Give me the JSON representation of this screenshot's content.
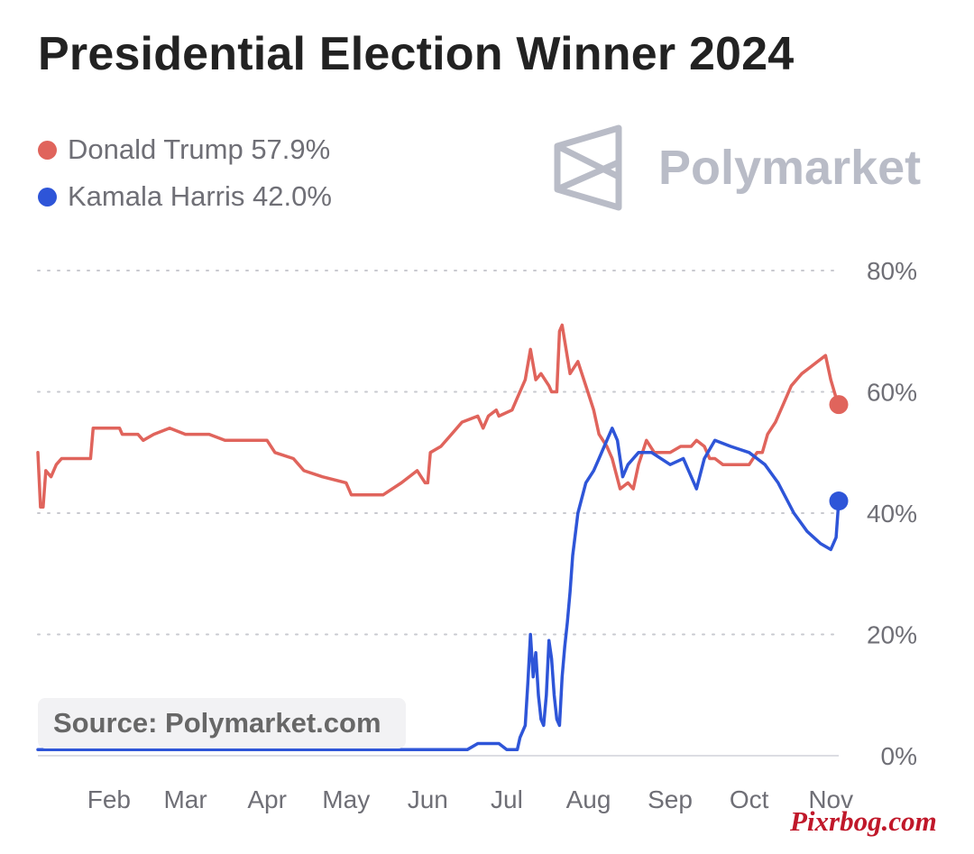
{
  "chart_data": {
    "type": "line",
    "title": "Presidential Election Winner 2024",
    "x_ticks": [
      "Feb",
      "Mar",
      "Apr",
      "May",
      "Jun",
      "Jul",
      "Aug",
      "Sep",
      "Oct",
      "Nov"
    ],
    "y_ticks": [
      "80%",
      "60%",
      "40%",
      "20%",
      "0%"
    ],
    "ylim": [
      0,
      80
    ],
    "grid": "horizontal dotted",
    "legend_position": "top-left",
    "series": [
      {
        "name": "Donald Trump",
        "legend_label": "Donald Trump 57.9%",
        "color": "#e0645c",
        "points": [
          [
            "2024-01-05",
            50
          ],
          [
            "2024-01-06",
            41
          ],
          [
            "2024-01-07",
            41
          ],
          [
            "2024-01-08",
            47
          ],
          [
            "2024-01-10",
            46
          ],
          [
            "2024-01-12",
            48
          ],
          [
            "2024-01-14",
            49
          ],
          [
            "2024-01-18",
            49
          ],
          [
            "2024-01-25",
            49
          ],
          [
            "2024-01-26",
            54
          ],
          [
            "2024-02-01",
            54
          ],
          [
            "2024-02-05",
            54
          ],
          [
            "2024-02-06",
            53
          ],
          [
            "2024-02-12",
            53
          ],
          [
            "2024-02-14",
            52
          ],
          [
            "2024-02-18",
            53
          ],
          [
            "2024-02-24",
            54
          ],
          [
            "2024-03-01",
            53
          ],
          [
            "2024-03-10",
            53
          ],
          [
            "2024-03-16",
            52
          ],
          [
            "2024-03-24",
            52
          ],
          [
            "2024-04-01",
            52
          ],
          [
            "2024-04-04",
            50
          ],
          [
            "2024-04-11",
            49
          ],
          [
            "2024-04-15",
            47
          ],
          [
            "2024-04-22",
            46
          ],
          [
            "2024-05-01",
            45
          ],
          [
            "2024-05-03",
            43
          ],
          [
            "2024-05-15",
            43
          ],
          [
            "2024-05-22",
            45
          ],
          [
            "2024-05-28",
            47
          ],
          [
            "2024-05-31",
            45
          ],
          [
            "2024-06-01",
            45
          ],
          [
            "2024-06-02",
            50
          ],
          [
            "2024-06-06",
            51
          ],
          [
            "2024-06-10",
            53
          ],
          [
            "2024-06-14",
            55
          ],
          [
            "2024-06-20",
            56
          ],
          [
            "2024-06-22",
            54
          ],
          [
            "2024-06-24",
            56
          ],
          [
            "2024-06-27",
            57
          ],
          [
            "2024-06-28",
            56
          ],
          [
            "2024-07-03",
            57
          ],
          [
            "2024-07-05",
            59
          ],
          [
            "2024-07-08",
            62
          ],
          [
            "2024-07-10",
            67
          ],
          [
            "2024-07-12",
            62
          ],
          [
            "2024-07-14",
            63
          ],
          [
            "2024-07-17",
            61
          ],
          [
            "2024-07-18",
            60
          ],
          [
            "2024-07-20",
            60
          ],
          [
            "2024-07-21",
            70
          ],
          [
            "2024-07-22",
            71
          ],
          [
            "2024-07-25",
            63
          ],
          [
            "2024-07-28",
            65
          ],
          [
            "2024-07-31",
            61
          ],
          [
            "2024-08-03",
            57
          ],
          [
            "2024-08-05",
            53
          ],
          [
            "2024-08-08",
            51
          ],
          [
            "2024-08-10",
            49
          ],
          [
            "2024-08-13",
            44
          ],
          [
            "2024-08-16",
            45
          ],
          [
            "2024-08-18",
            44
          ],
          [
            "2024-08-20",
            48
          ],
          [
            "2024-08-23",
            52
          ],
          [
            "2024-08-26",
            50
          ],
          [
            "2024-09-01",
            50
          ],
          [
            "2024-09-05",
            51
          ],
          [
            "2024-09-09",
            51
          ],
          [
            "2024-09-11",
            52
          ],
          [
            "2024-09-14",
            51
          ],
          [
            "2024-09-16",
            49
          ],
          [
            "2024-09-18",
            49
          ],
          [
            "2024-09-21",
            48
          ],
          [
            "2024-09-25",
            48
          ],
          [
            "2024-10-01",
            48
          ],
          [
            "2024-10-04",
            50
          ],
          [
            "2024-10-06",
            50
          ],
          [
            "2024-10-08",
            53
          ],
          [
            "2024-10-11",
            55
          ],
          [
            "2024-10-14",
            58
          ],
          [
            "2024-10-17",
            61
          ],
          [
            "2024-10-21",
            63
          ],
          [
            "2024-10-24",
            64
          ],
          [
            "2024-10-27",
            65
          ],
          [
            "2024-10-30",
            66
          ],
          [
            "2024-11-01",
            62
          ],
          [
            "2024-11-03",
            59
          ],
          [
            "2024-11-04",
            57.9
          ]
        ]
      },
      {
        "name": "Kamala Harris",
        "legend_label": "Kamala Harris 42.0%",
        "color": "#2e55d8",
        "points": [
          [
            "2024-01-05",
            1
          ],
          [
            "2024-03-01",
            1
          ],
          [
            "2024-05-01",
            1
          ],
          [
            "2024-06-01",
            1
          ],
          [
            "2024-06-16",
            1
          ],
          [
            "2024-06-20",
            2
          ],
          [
            "2024-06-28",
            2
          ],
          [
            "2024-07-01",
            1
          ],
          [
            "2024-07-05",
            1
          ],
          [
            "2024-07-06",
            3
          ],
          [
            "2024-07-08",
            5
          ],
          [
            "2024-07-09",
            12
          ],
          [
            "2024-07-10",
            20
          ],
          [
            "2024-07-11",
            13
          ],
          [
            "2024-07-12",
            17
          ],
          [
            "2024-07-13",
            10
          ],
          [
            "2024-07-14",
            6
          ],
          [
            "2024-07-15",
            5
          ],
          [
            "2024-07-16",
            10
          ],
          [
            "2024-07-17",
            19
          ],
          [
            "2024-07-18",
            16
          ],
          [
            "2024-07-19",
            10
          ],
          [
            "2024-07-20",
            6
          ],
          [
            "2024-07-21",
            5
          ],
          [
            "2024-07-22",
            13
          ],
          [
            "2024-07-23",
            18
          ],
          [
            "2024-07-24",
            22
          ],
          [
            "2024-07-25",
            27
          ],
          [
            "2024-07-26",
            33
          ],
          [
            "2024-07-28",
            40
          ],
          [
            "2024-07-31",
            45
          ],
          [
            "2024-08-03",
            47
          ],
          [
            "2024-08-05",
            49
          ],
          [
            "2024-08-07",
            51
          ],
          [
            "2024-08-10",
            54
          ],
          [
            "2024-08-12",
            52
          ],
          [
            "2024-08-14",
            46
          ],
          [
            "2024-08-16",
            48
          ],
          [
            "2024-08-20",
            50
          ],
          [
            "2024-08-25",
            50
          ],
          [
            "2024-09-01",
            48
          ],
          [
            "2024-09-06",
            49
          ],
          [
            "2024-09-11",
            44
          ],
          [
            "2024-09-14",
            49
          ],
          [
            "2024-09-18",
            52
          ],
          [
            "2024-09-24",
            51
          ],
          [
            "2024-10-01",
            50
          ],
          [
            "2024-10-07",
            48
          ],
          [
            "2024-10-12",
            45
          ],
          [
            "2024-10-18",
            40
          ],
          [
            "2024-10-23",
            37
          ],
          [
            "2024-10-28",
            35
          ],
          [
            "2024-11-01",
            34
          ],
          [
            "2024-11-03",
            36
          ],
          [
            "2024-11-04",
            42.0
          ]
        ]
      }
    ]
  },
  "source_label": "Source: Polymarket.com",
  "brand": {
    "name": "Polymarket",
    "icon": "polymarket-logo-icon"
  },
  "watermark": "Pixrbog.com"
}
